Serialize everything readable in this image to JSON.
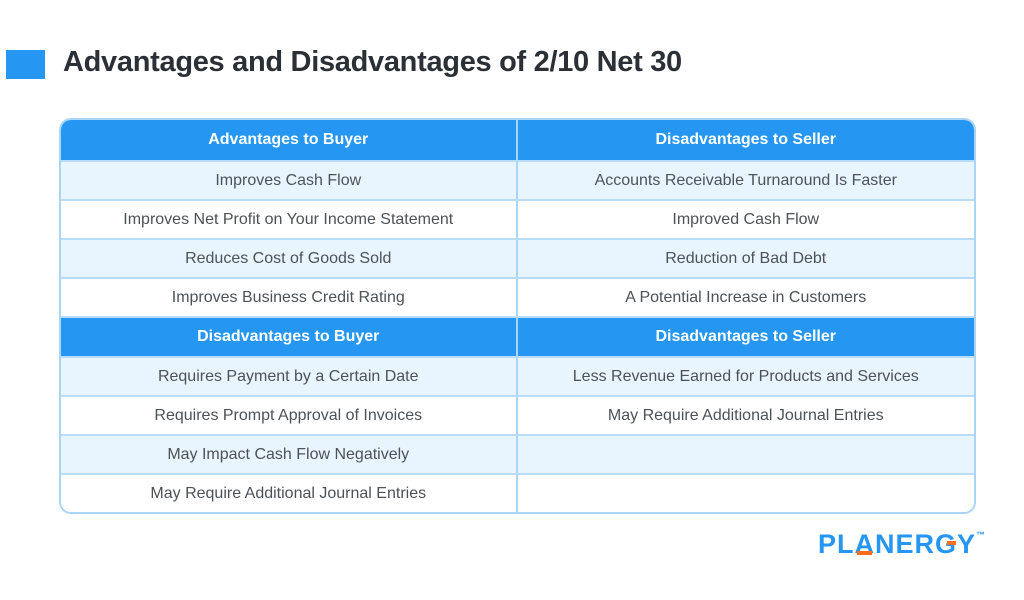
{
  "title": "Advantages and Disadvantages of 2/10 Net 30",
  "colors": {
    "accent_blue": "#2597f3",
    "header_blue": "#2597f3",
    "row_light_blue": "#e9f5fe",
    "row_white": "#ffffff",
    "border_blue": "#a9d6f7",
    "inner_line": "#b9ddf9",
    "title_text": "#2b3036",
    "cell_text": "#4d5257",
    "logo_blue": "#2596f3",
    "logo_orange": "#f96e1e"
  },
  "table": {
    "sections": [
      {
        "headers": [
          "Advantages to Buyer",
          "Disadvantages to Seller"
        ],
        "rows": [
          [
            "Improves Cash Flow",
            "Accounts Receivable Turnaround Is Faster"
          ],
          [
            "Improves Net Profit on Your Income Statement",
            "Improved Cash Flow"
          ],
          [
            "Reduces Cost of Goods Sold",
            "Reduction of Bad Debt"
          ],
          [
            "Improves Business Credit Rating",
            "A Potential Increase in Customers"
          ]
        ]
      },
      {
        "headers": [
          "Disadvantages to Buyer",
          "Disadvantages to Seller"
        ],
        "rows": [
          [
            "Requires Payment by a Certain Date",
            "Less Revenue Earned for Products and Services"
          ],
          [
            "Requires Prompt Approval of Invoices",
            "May Require Additional Journal Entries"
          ],
          [
            "May Impact Cash Flow Negatively",
            ""
          ],
          [
            "May Require Additional Journal Entries",
            ""
          ]
        ]
      }
    ]
  },
  "footer": {
    "brand_parts": [
      "PL",
      "A",
      "NER",
      "G",
      "Y"
    ],
    "trademark": "™"
  }
}
